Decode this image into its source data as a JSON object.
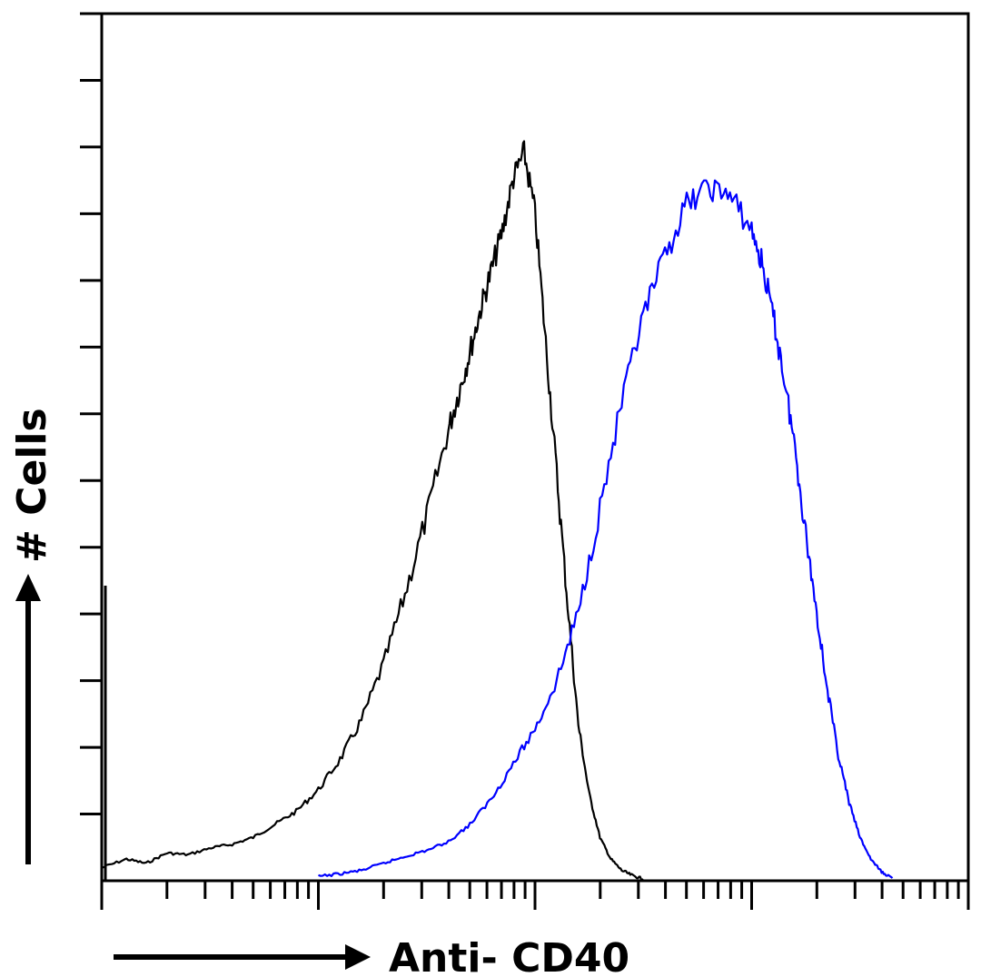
{
  "chart_data": {
    "type": "line",
    "title": "",
    "xlabel": "Anti- CD40",
    "ylabel": "# Cells",
    "xscale": "log",
    "xlim": [
      1,
      10000
    ],
    "ylim": [
      0,
      100
    ],
    "grid": false,
    "legend": "none",
    "series": [
      {
        "color": "#000000",
        "x": [
          1.0,
          1.3,
          1.6,
          2.0,
          2.5,
          3.2,
          4.0,
          5.0,
          6.3,
          7.9,
          10.0,
          12.6,
          15.8,
          20.0,
          25.1,
          31.6,
          39.8,
          44.7,
          50.1,
          56.2,
          63.1,
          70.8,
          79.4,
          89.1,
          100.0,
          112.2,
          125.9,
          141.3,
          158.5,
          177.8,
          199.5,
          223.9,
          251.2,
          281.8,
          316.2
        ],
        "y": [
          1.5,
          2.5,
          2.0,
          3.2,
          3.0,
          3.8,
          4.2,
          5.0,
          6.5,
          8.0,
          10.5,
          14.0,
          18.5,
          25.0,
          33.0,
          42.0,
          52.0,
          56.5,
          61.0,
          66.0,
          70.5,
          75.0,
          81.0,
          84.0,
          77.0,
          62.0,
          47.0,
          32.0,
          18.0,
          10.0,
          5.0,
          2.5,
          1.2,
          0.6,
          0.2
        ]
      },
      {
        "color": "#0000ff",
        "x": [
          10.0,
          12.6,
          15.8,
          20.0,
          25.1,
          31.6,
          39.8,
          50.1,
          63.1,
          79.4,
          100.0,
          125.9,
          158.5,
          199.5,
          251.2,
          316.2,
          398.1,
          501.2,
          631.0,
          794.3,
          1000.0,
          1122.0,
          1258.9,
          1412.5,
          1584.9,
          1778.3,
          1995.3,
          2238.7,
          2511.9,
          2818.4,
          3162.3,
          3548.1,
          3981.1,
          4466.8
        ],
        "y": [
          0.5,
          0.8,
          1.2,
          2.0,
          2.8,
          3.5,
          4.5,
          6.5,
          9.5,
          13.5,
          17.5,
          23.0,
          31.0,
          43.0,
          55.0,
          65.0,
          72.0,
          78.0,
          80.0,
          79.0,
          75.0,
          71.0,
          65.0,
          58.0,
          50.0,
          40.0,
          31.0,
          22.0,
          14.5,
          9.0,
          5.0,
          2.5,
          1.0,
          0.3
        ]
      }
    ]
  }
}
